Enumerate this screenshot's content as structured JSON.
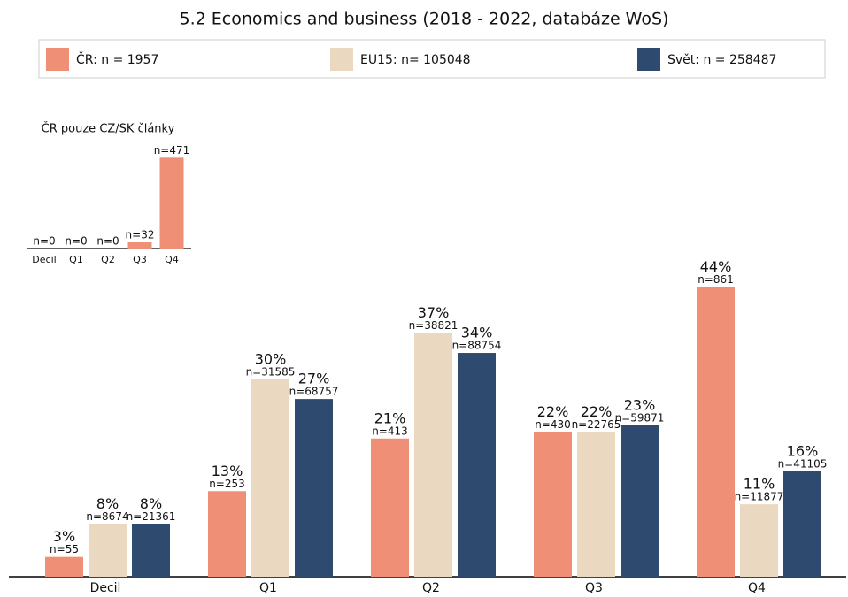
{
  "chart_data": [
    {
      "type": "grouped_bar",
      "title": "5.2 Economics and business (2018 - 2022, databáze WoS)",
      "categories": [
        "Decil",
        "Q1",
        "Q2",
        "Q3",
        "Q4"
      ],
      "ylim": [
        0,
        50
      ],
      "legend": "top",
      "series": [
        {
          "name": "ČR: n = 1957",
          "color": "#ef8f75",
          "values": [
            3,
            13,
            21,
            22,
            44
          ],
          "value_labels": [
            "3%",
            "13%",
            "21%",
            "22%",
            "44%"
          ],
          "n_labels": [
            "n=55",
            "n=253",
            "n=413",
            "n=430",
            "n=861"
          ]
        },
        {
          "name": "EU15: n= 105048",
          "color": "#ead8c0",
          "values": [
            8,
            30,
            37,
            22,
            11
          ],
          "value_labels": [
            "8%",
            "30%",
            "37%",
            "22%",
            "11%"
          ],
          "n_labels": [
            "n=8674",
            "n=31585",
            "n=38821",
            "n=22765",
            "n=11877"
          ]
        },
        {
          "name": "Svět: n = 258487",
          "color": "#2e4a6e",
          "values": [
            8,
            27,
            34,
            23,
            16
          ],
          "value_labels": [
            "8%",
            "27%",
            "34%",
            "23%",
            "16%"
          ],
          "n_labels": [
            "n=21361",
            "n=68757",
            "n=88754",
            "n=59871",
            "n=41105"
          ]
        }
      ]
    },
    {
      "type": "bar",
      "title": "ČR pouze CZ/SK články",
      "categories": [
        "Decil",
        "Q1",
        "Q2",
        "Q3",
        "Q4"
      ],
      "values": [
        0,
        0,
        0,
        32,
        471
      ],
      "value_labels": [
        "n=0",
        "n=0",
        "n=0",
        "n=32",
        "n=471"
      ],
      "ylim": [
        0,
        500
      ],
      "color": "#ef8f75"
    }
  ]
}
